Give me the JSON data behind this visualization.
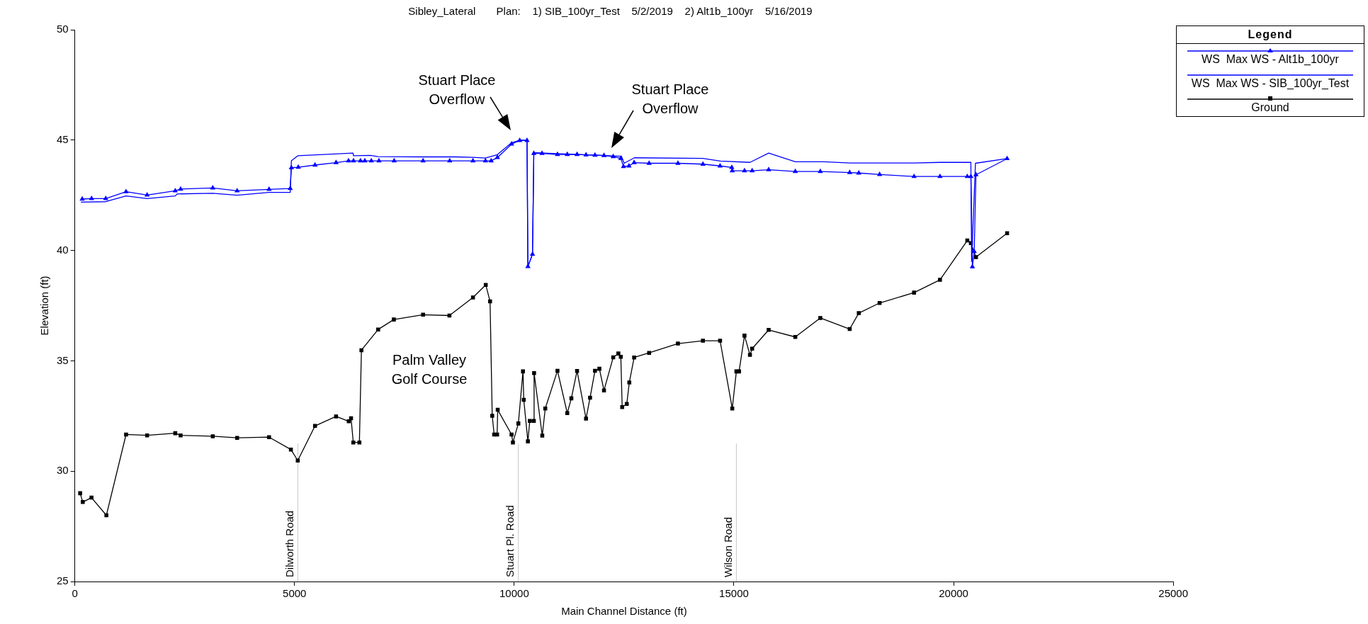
{
  "chart_data": {
    "type": "line",
    "title": "Sibley_Lateral       Plan:    1) SIB_100yr_Test    5/2/2019    2) Alt1b_100yr    5/16/2019",
    "xlabel": "Main Channel Distance (ft)",
    "ylabel": "Elevation (ft)",
    "legend_title": "Legend",
    "xlim": [
      0,
      25000
    ],
    "xticks": [
      0,
      5000,
      10000,
      15000,
      20000,
      25000
    ],
    "ylim": [
      25,
      50
    ],
    "yticks": [
      25,
      30,
      35,
      40,
      45,
      50
    ],
    "grid": false,
    "legend": "top right",
    "series": [
      {
        "name": "WS  Max WS - Alt1b_100yr",
        "color": "#0000ff",
        "marker": "triangle",
        "x": [
          167,
          380,
          703,
          1165,
          1644,
          2285,
          2407,
          3139,
          3693,
          4420,
          4901,
          4928,
          5085,
          5466,
          5945,
          6228,
          6342,
          6500,
          6600,
          6747,
          6921,
          7267,
          7925,
          8531,
          9061,
          9345,
          9475,
          9617,
          9939,
          10125,
          10291,
          10311,
          10416,
          10446,
          10632,
          10984,
          11207,
          11430,
          11634,
          11838,
          12043,
          12253,
          12426,
          12487,
          12612,
          12729,
          13070,
          13726,
          14295,
          14685,
          14951,
          14962,
          15241,
          15415,
          15791,
          16397,
          16966,
          17635,
          17842,
          18316,
          19100,
          19690,
          20312,
          20393,
          20428,
          20469,
          20509,
          21218
        ],
        "values": [
          42.33,
          42.35,
          42.35,
          42.66,
          42.51,
          42.7,
          42.78,
          42.83,
          42.7,
          42.77,
          42.81,
          43.75,
          43.77,
          43.87,
          43.98,
          44.06,
          44.06,
          44.06,
          44.06,
          44.06,
          44.06,
          44.06,
          44.06,
          44.06,
          44.06,
          44.06,
          44.06,
          44.21,
          44.82,
          44.98,
          44.98,
          39.27,
          39.83,
          44.4,
          44.4,
          44.35,
          44.35,
          44.35,
          44.33,
          44.32,
          44.3,
          44.25,
          44.17,
          43.8,
          43.83,
          43.98,
          43.95,
          43.95,
          43.91,
          43.83,
          43.76,
          43.61,
          43.61,
          43.61,
          43.66,
          43.58,
          43.58,
          43.53,
          43.51,
          43.44,
          43.35,
          43.35,
          43.35,
          43.35,
          39.26,
          39.95,
          43.43,
          44.16
        ]
      },
      {
        "name": "WS  Max WS - SIB_100yr_Test",
        "color": "#0000ff",
        "marker": "none",
        "x": [
          137,
          703,
          1165,
          1644,
          2285,
          2330,
          3139,
          3693,
          4420,
          4901,
          4928,
          5073,
          6331,
          6342,
          6728,
          6900,
          7925,
          8652,
          9061,
          9345,
          9617,
          9939,
          10125,
          10291,
          10311,
          10416,
          10446,
          12439,
          12500,
          12735,
          14295,
          14685,
          15365,
          15791,
          16397,
          17050,
          17640,
          19100,
          19690,
          20393,
          20410,
          20497,
          21218
        ],
        "values": [
          42.19,
          42.21,
          42.47,
          42.35,
          42.47,
          42.56,
          42.59,
          42.5,
          42.63,
          42.63,
          44.06,
          44.29,
          44.41,
          44.29,
          44.31,
          44.25,
          44.24,
          44.24,
          44.22,
          44.19,
          44.34,
          44.88,
          45.0,
          45.0,
          39.27,
          39.83,
          44.43,
          44.27,
          43.95,
          44.2,
          44.17,
          44.05,
          43.99,
          44.41,
          44.02,
          44.02,
          43.96,
          43.96,
          43.99,
          43.99,
          39.5,
          43.95,
          44.16
        ]
      },
      {
        "name": "Ground",
        "color": "#000000",
        "marker": "square",
        "x": [
          120,
          180,
          378,
          717,
          1165,
          1644,
          2285,
          2407,
          3139,
          3693,
          4420,
          4917,
          5073,
          5466,
          5945,
          6234,
          6286,
          6337,
          6476,
          6522,
          6903,
          7260,
          7925,
          8525,
          9061,
          9352,
          9450,
          9499,
          9543,
          9611,
          9624,
          9939,
          9970,
          10094,
          10199,
          10217,
          10311,
          10354,
          10446,
          10452,
          10638,
          10706,
          10984,
          11207,
          11300,
          11430,
          11634,
          11726,
          11838,
          11938,
          12043,
          12253,
          12370,
          12426,
          12457,
          12562,
          12619,
          12729,
          13070,
          13726,
          14295,
          14685,
          14962,
          15056,
          15117,
          15241,
          15365,
          15415,
          15791,
          16397,
          16966,
          17635,
          17842,
          18316,
          19100,
          19690,
          20312,
          20393,
          20509,
          21218
        ],
        "values": [
          29.0,
          28.6,
          28.8,
          28.0,
          31.66,
          31.62,
          31.72,
          31.62,
          31.58,
          31.51,
          31.54,
          30.98,
          30.48,
          32.05,
          32.48,
          32.26,
          32.4,
          31.3,
          31.3,
          35.48,
          36.42,
          36.87,
          37.09,
          37.05,
          37.87,
          38.44,
          37.69,
          32.51,
          31.66,
          31.66,
          32.78,
          31.66,
          31.3,
          32.16,
          34.52,
          33.23,
          31.35,
          32.28,
          32.28,
          34.44,
          31.61,
          32.84,
          34.55,
          32.63,
          33.3,
          34.54,
          32.38,
          33.33,
          34.55,
          34.64,
          33.66,
          35.16,
          35.33,
          35.18,
          32.9,
          33.05,
          34.02,
          35.15,
          35.36,
          35.78,
          35.91,
          35.91,
          32.84,
          34.52,
          34.52,
          36.14,
          35.27,
          35.55,
          36.4,
          36.08,
          36.94,
          36.44,
          37.16,
          37.62,
          38.09,
          38.67,
          40.45,
          40.33,
          39.7,
          40.78
        ]
      }
    ],
    "ref_lines": [
      {
        "axis": "x",
        "value": 5075,
        "label": "Dilworth Road",
        "color": "#c8c8c8"
      },
      {
        "axis": "x",
        "value": 10094,
        "label": "Stuart Pl. Road",
        "color": "#c8c8c8"
      },
      {
        "axis": "x",
        "value": 15056,
        "label": "Wilson Road",
        "color": "#c8c8c8"
      }
    ],
    "annotations": [
      "Stuart Place\nOverflow",
      "Stuart Place\nOverflow",
      "Palm Valley\nGolf Course"
    ]
  }
}
